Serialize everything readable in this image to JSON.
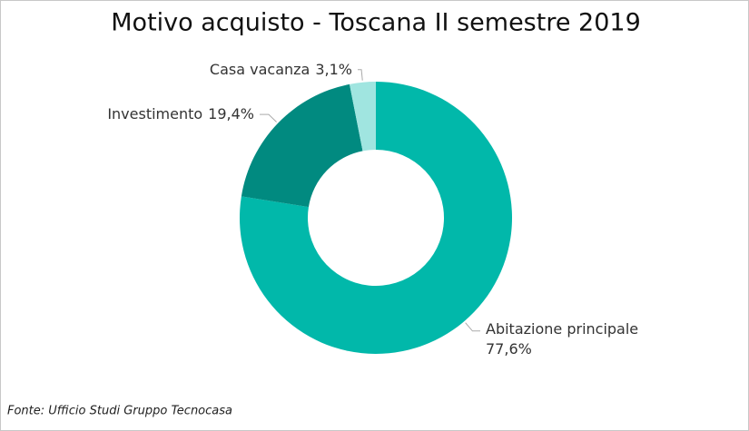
{
  "chart_data": {
    "type": "donut",
    "title": "Motivo acquisto - Toscana II semestre 2019",
    "categories": [
      "Abitazione principale",
      "Investimento",
      "Casa vacanza"
    ],
    "values": [
      77.6,
      19.4,
      3.1
    ],
    "value_labels": [
      "77,6%",
      "19,4%",
      "3,1%"
    ],
    "colors": [
      "#01B8AA",
      "#018A80",
      "#A0E5E0"
    ],
    "source": "Fonte: Ufficio Studi Gruppo Tecnocasa"
  }
}
